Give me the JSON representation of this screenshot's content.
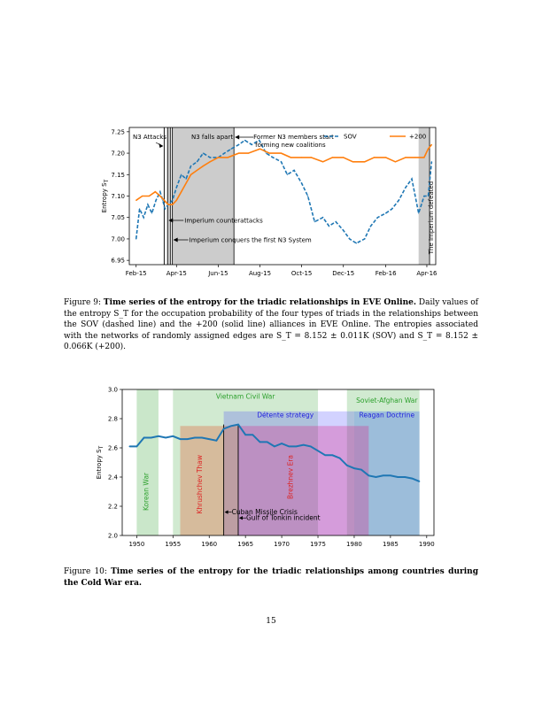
{
  "figure9": {
    "caption_label": "Figure 9:",
    "caption_title": "Time series of the entropy for the triadic relationships in EVE Online.",
    "caption_text": "Daily values of the entropy S_T for the occupation probability of the four types of triads in the relationships between the SOV (dashed line) and the +200 (solid line) alliances in EVE Online. The entropies associated with the networks of randomly assigned edges are S_T = 8.152 ± 0.011K (SOV) and S_T = 8.152 ± 0.066K (+200).",
    "chart_data": {
      "type": "line",
      "ylabel": "Entropy S_T",
      "xlabel": "",
      "ylim": [
        6.94,
        7.26
      ],
      "x_tick_labels": [
        "Feb-15",
        "Apr-15",
        "Jun-15",
        "Aug-15",
        "Oct-15",
        "Dec-15",
        "Feb-16",
        "Apr-16"
      ],
      "x_tick_dates": [
        "2015-02-01",
        "2015-04-01",
        "2015-06-01",
        "2015-08-01",
        "2015-10-01",
        "2015-12-01",
        "2016-02-01",
        "2016-04-01"
      ],
      "y_ticks": [
        6.95,
        7.0,
        7.05,
        7.1,
        7.15,
        7.2,
        7.25
      ],
      "y_tick_labels": [
        "6.95",
        "7.00",
        "7.05",
        "7.10",
        "7.15",
        "7.20",
        "7.25"
      ],
      "legend": {
        "placement": "top-right",
        "entries": [
          "SOV",
          "+200"
        ]
      },
      "series": [
        {
          "name": "SOV",
          "style": "dashed",
          "color": "#1f77b4",
          "x": [
            "2015-02-01",
            "2015-02-06",
            "2015-02-12",
            "2015-02-18",
            "2015-02-24",
            "2015-03-02",
            "2015-03-08",
            "2015-03-12",
            "2015-03-15",
            "2015-03-20",
            "2015-03-26",
            "2015-04-01",
            "2015-04-08",
            "2015-04-15",
            "2015-04-22",
            "2015-05-01",
            "2015-05-10",
            "2015-05-20",
            "2015-06-01",
            "2015-06-10",
            "2015-06-20",
            "2015-07-01",
            "2015-07-10",
            "2015-07-20",
            "2015-07-31",
            "2015-08-10",
            "2015-08-20",
            "2015-09-01",
            "2015-09-10",
            "2015-09-20",
            "2015-10-01",
            "2015-10-10",
            "2015-10-20",
            "2015-11-01",
            "2015-11-10",
            "2015-11-20",
            "2015-12-01",
            "2015-12-10",
            "2015-12-20",
            "2016-01-01",
            "2016-01-10",
            "2016-01-20",
            "2016-02-01",
            "2016-02-10",
            "2016-02-20",
            "2016-03-01",
            "2016-03-10",
            "2016-03-20",
            "2016-03-28",
            "2016-04-03",
            "2016-04-08"
          ],
          "y": [
            7.0,
            7.07,
            7.05,
            7.08,
            7.06,
            7.09,
            7.11,
            7.09,
            7.07,
            7.08,
            7.09,
            7.12,
            7.15,
            7.14,
            7.17,
            7.18,
            7.2,
            7.19,
            7.19,
            7.2,
            7.21,
            7.22,
            7.23,
            7.22,
            7.23,
            7.2,
            7.19,
            7.18,
            7.15,
            7.16,
            7.13,
            7.1,
            7.04,
            7.05,
            7.03,
            7.04,
            7.02,
            7.0,
            6.99,
            7.0,
            7.03,
            7.05,
            7.06,
            7.07,
            7.09,
            7.12,
            7.14,
            7.06,
            7.1,
            7.1,
            7.18
          ]
        },
        {
          "name": "+200",
          "style": "solid",
          "color": "#ff7f0e",
          "x": [
            "2015-02-01",
            "2015-02-10",
            "2015-02-20",
            "2015-03-01",
            "2015-03-08",
            "2015-03-14",
            "2015-03-20",
            "2015-03-26",
            "2015-04-01",
            "2015-04-08",
            "2015-04-15",
            "2015-04-22",
            "2015-05-01",
            "2015-05-10",
            "2015-05-20",
            "2015-06-01",
            "2015-06-15",
            "2015-07-01",
            "2015-07-15",
            "2015-08-01",
            "2015-08-15",
            "2015-09-01",
            "2015-09-15",
            "2015-10-01",
            "2015-10-15",
            "2015-11-01",
            "2015-11-15",
            "2015-12-01",
            "2015-12-15",
            "2016-01-01",
            "2016-01-15",
            "2016-02-01",
            "2016-02-15",
            "2016-03-01",
            "2016-03-15",
            "2016-03-28",
            "2016-04-03",
            "2016-04-08"
          ],
          "y": [
            7.09,
            7.1,
            7.1,
            7.11,
            7.1,
            7.09,
            7.08,
            7.08,
            7.09,
            7.11,
            7.13,
            7.15,
            7.16,
            7.17,
            7.18,
            7.19,
            7.19,
            7.2,
            7.2,
            7.21,
            7.2,
            7.2,
            7.19,
            7.19,
            7.19,
            7.18,
            7.19,
            7.19,
            7.18,
            7.18,
            7.19,
            7.19,
            7.18,
            7.19,
            7.19,
            7.19,
            7.21,
            7.22
          ]
        }
      ],
      "shaded_spans": [
        {
          "start": "2015-03-13",
          "end": "2015-03-15",
          "color": "#aaaaaa"
        },
        {
          "start": "2015-03-18",
          "end": "2015-03-23",
          "color": "#aaaaaa"
        },
        {
          "start": "2015-03-25",
          "end": "2015-06-24",
          "color": "#aaaaaa"
        },
        {
          "start": "2016-03-20",
          "end": "2016-04-05",
          "color": "#aaaaaa"
        }
      ],
      "vertical_lines": [
        "2015-03-14",
        "2015-03-19",
        "2015-03-23",
        "2015-03-26",
        "2015-06-24",
        "2016-04-05"
      ],
      "annotations": [
        {
          "text": "N3 Attacks",
          "date": "2015-03-14"
        },
        {
          "text": "N3 falls apart",
          "date": "2015-03-26"
        },
        {
          "text": "Former N3 members start",
          "date": "2015-06-24"
        },
        {
          "text": "forming new coalitions",
          "date": "2015-06-24"
        },
        {
          "text": "Imperium counterattacks",
          "date": "2015-03-19"
        },
        {
          "text": "Imperium conquers the first N3 System",
          "date": "2015-03-26"
        },
        {
          "text": "The Imperium defeated",
          "date": "2016-03-28"
        }
      ]
    }
  },
  "figure10": {
    "caption_label": "Figure 10:",
    "caption_title": "Time series of the entropy for the triadic relationships among countries during the Cold War era.",
    "chart_data": {
      "type": "line",
      "ylabel": "Entropy S_T",
      "xlabel": "",
      "xlim": [
        1948,
        1991
      ],
      "ylim": [
        2.0,
        3.0
      ],
      "x_ticks": [
        1950,
        1955,
        1960,
        1965,
        1970,
        1975,
        1980,
        1985,
        1990
      ],
      "y_ticks": [
        2.0,
        2.2,
        2.4,
        2.6,
        2.8,
        3.0
      ],
      "y_tick_labels": [
        "2.0",
        "2.2",
        "2.4",
        "2.6",
        "2.8",
        "3.0"
      ],
      "series": [
        {
          "color": "#1f77b4",
          "x": [
            1949,
            1950,
            1951,
            1952,
            1953,
            1954,
            1955,
            1956,
            1957,
            1958,
            1959,
            1960,
            1961,
            1962,
            1963,
            1964,
            1965,
            1966,
            1967,
            1968,
            1969,
            1970,
            1971,
            1972,
            1973,
            1974,
            1975,
            1976,
            1977,
            1978,
            1979,
            1980,
            1981,
            1982,
            1983,
            1984,
            1985,
            1986,
            1987,
            1988,
            1989
          ],
          "y": [
            2.61,
            2.61,
            2.67,
            2.67,
            2.68,
            2.67,
            2.68,
            2.66,
            2.66,
            2.67,
            2.67,
            2.66,
            2.65,
            2.73,
            2.75,
            2.76,
            2.69,
            2.69,
            2.64,
            2.64,
            2.61,
            2.63,
            2.61,
            2.61,
            2.62,
            2.61,
            2.58,
            2.55,
            2.55,
            2.53,
            2.48,
            2.46,
            2.45,
            2.41,
            2.4,
            2.41,
            2.41,
            2.4,
            2.4,
            2.39,
            2.37
          ]
        }
      ],
      "spans": [
        {
          "label": "Korean War",
          "start": 1950,
          "end": 1953,
          "ymax": 3.0,
          "color": "#2ca02c",
          "opacity": 0.25,
          "label_color": "#2ca02c",
          "label_orient": "vertical"
        },
        {
          "label": "Vietnam Civil War",
          "start": 1955,
          "end": 1975,
          "ymax": 3.0,
          "color": "#2ca02c",
          "opacity": 0.22,
          "label_color": "#2ca02c",
          "label_orient": "horizontal"
        },
        {
          "label": "Soviet-Afghan War",
          "start": 1979,
          "end": 1989,
          "ymax": 3.0,
          "color": "#2ca02c",
          "opacity": 0.22,
          "label_color": "#2ca02c",
          "label_orient": "horizontal"
        },
        {
          "label": "Détente strategy",
          "start": 1962,
          "end": 1980,
          "ymax": 2.85,
          "color": "#3333ff",
          "opacity": 0.22,
          "label_color": "#2222dd",
          "label_orient": "horizontal"
        },
        {
          "label": "Reagan Doctrine",
          "start": 1980,
          "end": 1989,
          "ymax": 2.85,
          "color": "#2255ee",
          "opacity": 0.3,
          "label_color": "#2222dd",
          "label_orient": "horizontal"
        },
        {
          "label": "Khrushchev Thaw",
          "start": 1956,
          "end": 1964,
          "ymax": 2.75,
          "color": "#e05020",
          "opacity": 0.3,
          "label_color": "#dd2222",
          "label_orient": "vertical"
        },
        {
          "label": "Brezhnev Era",
          "start": 1964,
          "end": 1982,
          "ymax": 2.75,
          "color": "#dd2288",
          "opacity": 0.3,
          "label_color": "#dd2222",
          "label_orient": "vertical"
        }
      ],
      "vertical_lines": [
        1962,
        1964
      ],
      "annotations": [
        {
          "text": "Cuban Missile Crisis",
          "x": 1962,
          "y": 2.16
        },
        {
          "text": "Gulf of Tonkin incident",
          "x": 1964,
          "y": 2.12
        }
      ]
    }
  },
  "page_number": "15"
}
